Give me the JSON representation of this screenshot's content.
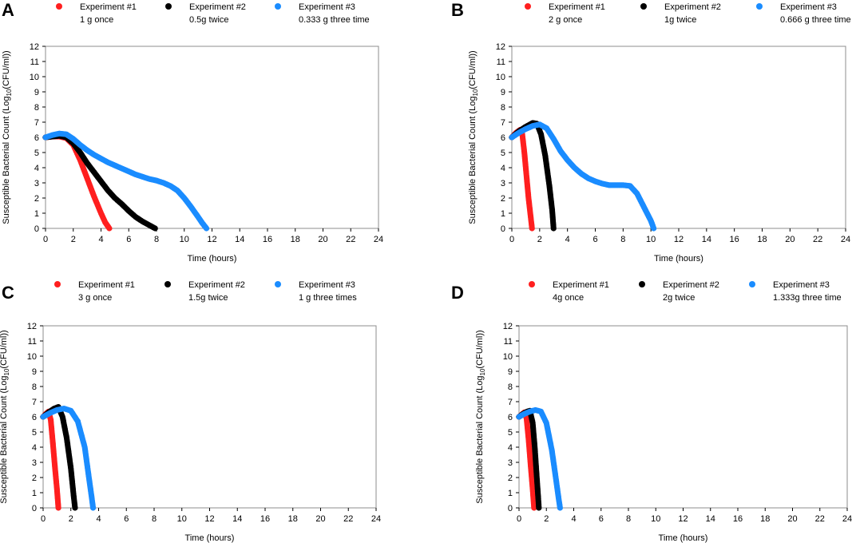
{
  "chart_data": [
    {
      "type": "scatter",
      "panel": "A",
      "xlabel": "Time (hours)",
      "ylabel": "Susceptible Bacterial Count (Log10(CFU/ml))",
      "ylabel_parts": [
        "Susceptible Bacterial Count (Log",
        "10",
        "(CFU/ml))"
      ],
      "xlim": [
        0,
        24
      ],
      "ylim": [
        0,
        12
      ],
      "xticks": [
        "0",
        "2",
        "4",
        "6",
        "8",
        "10",
        "12",
        "14",
        "16",
        "18",
        "20",
        "22",
        "24"
      ],
      "yticks": [
        "0",
        "1",
        "2",
        "3",
        "4",
        "5",
        "6",
        "7",
        "8",
        "9",
        "10",
        "11",
        "12"
      ],
      "series": [
        {
          "name": "Experiment #1",
          "desc": "1 g once",
          "color": "#ff1f1f",
          "points": [
            [
              0,
              6.0
            ],
            [
              0.5,
              6.05
            ],
            [
              1,
              6.05
            ],
            [
              1.5,
              5.95
            ],
            [
              2,
              5.5
            ],
            [
              2.5,
              4.5
            ],
            [
              3,
              3.3
            ],
            [
              3.5,
              2.1
            ],
            [
              4,
              1.0
            ],
            [
              4.3,
              0.4
            ],
            [
              4.6,
              0.0
            ]
          ]
        },
        {
          "name": "Experiment #2",
          "desc": "0.5g twice",
          "color": "#000000",
          "points": [
            [
              0,
              6.0
            ],
            [
              0.5,
              6.05
            ],
            [
              1,
              6.1
            ],
            [
              1.5,
              6.0
            ],
            [
              2,
              5.6
            ],
            [
              2.5,
              5.0
            ],
            [
              3,
              4.3
            ],
            [
              3.5,
              3.7
            ],
            [
              4,
              3.1
            ],
            [
              4.5,
              2.5
            ],
            [
              5,
              2.0
            ],
            [
              5.5,
              1.6
            ],
            [
              6,
              1.15
            ],
            [
              6.5,
              0.75
            ],
            [
              7,
              0.45
            ],
            [
              7.5,
              0.2
            ],
            [
              7.9,
              0.0
            ]
          ]
        },
        {
          "name": "Experiment #3",
          "desc": "0.333 g three time",
          "color": "#1a8cff",
          "points": [
            [
              0,
              6.0
            ],
            [
              0.5,
              6.15
            ],
            [
              1,
              6.25
            ],
            [
              1.5,
              6.2
            ],
            [
              2,
              5.9
            ],
            [
              2.5,
              5.5
            ],
            [
              3,
              5.15
            ],
            [
              3.5,
              4.85
            ],
            [
              4,
              4.6
            ],
            [
              4.5,
              4.35
            ],
            [
              5,
              4.15
            ],
            [
              5.5,
              3.95
            ],
            [
              6,
              3.75
            ],
            [
              6.5,
              3.55
            ],
            [
              7,
              3.4
            ],
            [
              7.5,
              3.25
            ],
            [
              8,
              3.15
            ],
            [
              8.5,
              3.0
            ],
            [
              9,
              2.8
            ],
            [
              9.5,
              2.5
            ],
            [
              10,
              2.0
            ],
            [
              10.5,
              1.4
            ],
            [
              11,
              0.75
            ],
            [
              11.3,
              0.35
            ],
            [
              11.6,
              0.0
            ]
          ]
        }
      ]
    },
    {
      "type": "scatter",
      "panel": "B",
      "xlabel": "Time (hours)",
      "ylabel": "Susceptible Bacterial Count (Log10(CFU/ml))",
      "ylabel_parts": [
        "Susceptible Bacterial Count (Log",
        "10",
        "(CFU/ml))"
      ],
      "xlim": [
        0,
        24
      ],
      "ylim": [
        0,
        12
      ],
      "xticks": [
        "0",
        "2",
        "4",
        "6",
        "8",
        "10",
        "12",
        "14",
        "16",
        "18",
        "20",
        "22",
        "24"
      ],
      "yticks": [
        "0",
        "1",
        "2",
        "3",
        "4",
        "5",
        "6",
        "7",
        "8",
        "9",
        "10",
        "11",
        "12"
      ],
      "series": [
        {
          "name": "Experiment #1",
          "desc": "2 g once",
          "color": "#ff1f1f",
          "points": [
            [
              0,
              6.0
            ],
            [
              0.3,
              6.3
            ],
            [
              0.6,
              6.5
            ],
            [
              0.75,
              6.2
            ],
            [
              0.9,
              5.0
            ],
            [
              1.05,
              3.5
            ],
            [
              1.2,
              2.0
            ],
            [
              1.35,
              0.8
            ],
            [
              1.45,
              0.0
            ]
          ]
        },
        {
          "name": "Experiment #2",
          "desc": "1g twice",
          "color": "#000000",
          "points": [
            [
              0,
              6.0
            ],
            [
              0.5,
              6.4
            ],
            [
              1,
              6.7
            ],
            [
              1.5,
              6.95
            ],
            [
              1.8,
              6.9
            ],
            [
              2.1,
              6.2
            ],
            [
              2.4,
              4.8
            ],
            [
              2.7,
              2.8
            ],
            [
              2.9,
              1.2
            ],
            [
              3.0,
              0.0
            ]
          ]
        },
        {
          "name": "Experiment #3",
          "desc": "0.666 g three time",
          "color": "#1a8cff",
          "points": [
            [
              0,
              6.0
            ],
            [
              0.5,
              6.3
            ],
            [
              1,
              6.55
            ],
            [
              1.5,
              6.75
            ],
            [
              2,
              6.85
            ],
            [
              2.5,
              6.6
            ],
            [
              3,
              5.9
            ],
            [
              3.5,
              5.1
            ],
            [
              4,
              4.5
            ],
            [
              4.5,
              4.0
            ],
            [
              5,
              3.6
            ],
            [
              5.5,
              3.3
            ],
            [
              6,
              3.1
            ],
            [
              6.5,
              2.95
            ],
            [
              7,
              2.85
            ],
            [
              7.5,
              2.85
            ],
            [
              8,
              2.85
            ],
            [
              8.5,
              2.8
            ],
            [
              9,
              2.3
            ],
            [
              9.5,
              1.4
            ],
            [
              10,
              0.5
            ],
            [
              10.2,
              0.0
            ]
          ]
        }
      ]
    },
    {
      "type": "scatter",
      "panel": "C",
      "xlabel": "Time (hours)",
      "ylabel": "Susceptible Bacterial Count (Log10(CFU/ml))",
      "ylabel_parts": [
        "Susceptible Bacterial Count (Log",
        "10",
        "(CFU/ml))"
      ],
      "xlim": [
        0,
        24
      ],
      "ylim": [
        0,
        12
      ],
      "xticks": [
        "0",
        "2",
        "4",
        "6",
        "8",
        "10",
        "12",
        "14",
        "16",
        "18",
        "20",
        "22",
        "24"
      ],
      "yticks": [
        "0",
        "1",
        "2",
        "3",
        "4",
        "5",
        "6",
        "7",
        "8",
        "9",
        "10",
        "11",
        "12"
      ],
      "series": [
        {
          "name": "Experiment #1",
          "desc": "3 g once",
          "color": "#ff1f1f",
          "points": [
            [
              0,
              6.0
            ],
            [
              0.2,
              6.2
            ],
            [
              0.4,
              6.35
            ],
            [
              0.55,
              5.8
            ],
            [
              0.7,
              4.3
            ],
            [
              0.85,
              2.7
            ],
            [
              1.0,
              1.2
            ],
            [
              1.1,
              0.0
            ]
          ]
        },
        {
          "name": "Experiment #2",
          "desc": "1.5g twice",
          "color": "#000000",
          "points": [
            [
              0,
              6.0
            ],
            [
              0.4,
              6.3
            ],
            [
              0.8,
              6.55
            ],
            [
              1.1,
              6.65
            ],
            [
              1.4,
              6.0
            ],
            [
              1.7,
              4.6
            ],
            [
              2.0,
              2.6
            ],
            [
              2.2,
              0.8
            ],
            [
              2.3,
              0.0
            ]
          ]
        },
        {
          "name": "Experiment #3",
          "desc": "1 g three times",
          "color": "#1a8cff",
          "points": [
            [
              0,
              6.0
            ],
            [
              0.5,
              6.25
            ],
            [
              1,
              6.45
            ],
            [
              1.5,
              6.55
            ],
            [
              2,
              6.4
            ],
            [
              2.5,
              5.7
            ],
            [
              3,
              4.0
            ],
            [
              3.3,
              2.0
            ],
            [
              3.5,
              0.7
            ],
            [
              3.6,
              0.0
            ]
          ]
        }
      ]
    },
    {
      "type": "scatter",
      "panel": "D",
      "xlabel": "Time (hours)",
      "ylabel": "Susceptible Bacterial Count (Log10(CFU/ml))",
      "ylabel_parts": [
        "Susceptible Bacterial Count (Log",
        "10",
        "(CFU/ml))"
      ],
      "xlim": [
        0,
        24
      ],
      "ylim": [
        0,
        12
      ],
      "xticks": [
        "0",
        "2",
        "4",
        "6",
        "8",
        "10",
        "12",
        "14",
        "16",
        "18",
        "20",
        "22",
        "24"
      ],
      "yticks": [
        "0",
        "1",
        "2",
        "3",
        "4",
        "5",
        "6",
        "7",
        "8",
        "9",
        "10",
        "11",
        "12"
      ],
      "series": [
        {
          "name": "Experiment #1",
          "desc": "4g once",
          "color": "#ff1f1f",
          "points": [
            [
              0,
              6.0
            ],
            [
              0.2,
              6.15
            ],
            [
              0.4,
              6.3
            ],
            [
              0.55,
              5.9
            ],
            [
              0.7,
              4.5
            ],
            [
              0.85,
              2.8
            ],
            [
              1.0,
              1.2
            ],
            [
              1.1,
              0.0
            ]
          ]
        },
        {
          "name": "Experiment #2",
          "desc": "2g twice",
          "color": "#000000",
          "points": [
            [
              0,
              6.0
            ],
            [
              0.3,
              6.2
            ],
            [
              0.6,
              6.35
            ],
            [
              0.8,
              6.4
            ],
            [
              1.0,
              5.6
            ],
            [
              1.15,
              4.0
            ],
            [
              1.3,
              2.0
            ],
            [
              1.4,
              0.7
            ],
            [
              1.45,
              0.0
            ]
          ]
        },
        {
          "name": "Experiment #3",
          "desc": "1.333g three time",
          "color": "#1a8cff",
          "points": [
            [
              0,
              6.0
            ],
            [
              0.4,
              6.2
            ],
            [
              0.8,
              6.35
            ],
            [
              1.2,
              6.45
            ],
            [
              1.6,
              6.35
            ],
            [
              2.0,
              5.6
            ],
            [
              2.4,
              3.8
            ],
            [
              2.7,
              1.9
            ],
            [
              2.9,
              0.6
            ],
            [
              3.0,
              0.0
            ]
          ]
        }
      ]
    }
  ]
}
